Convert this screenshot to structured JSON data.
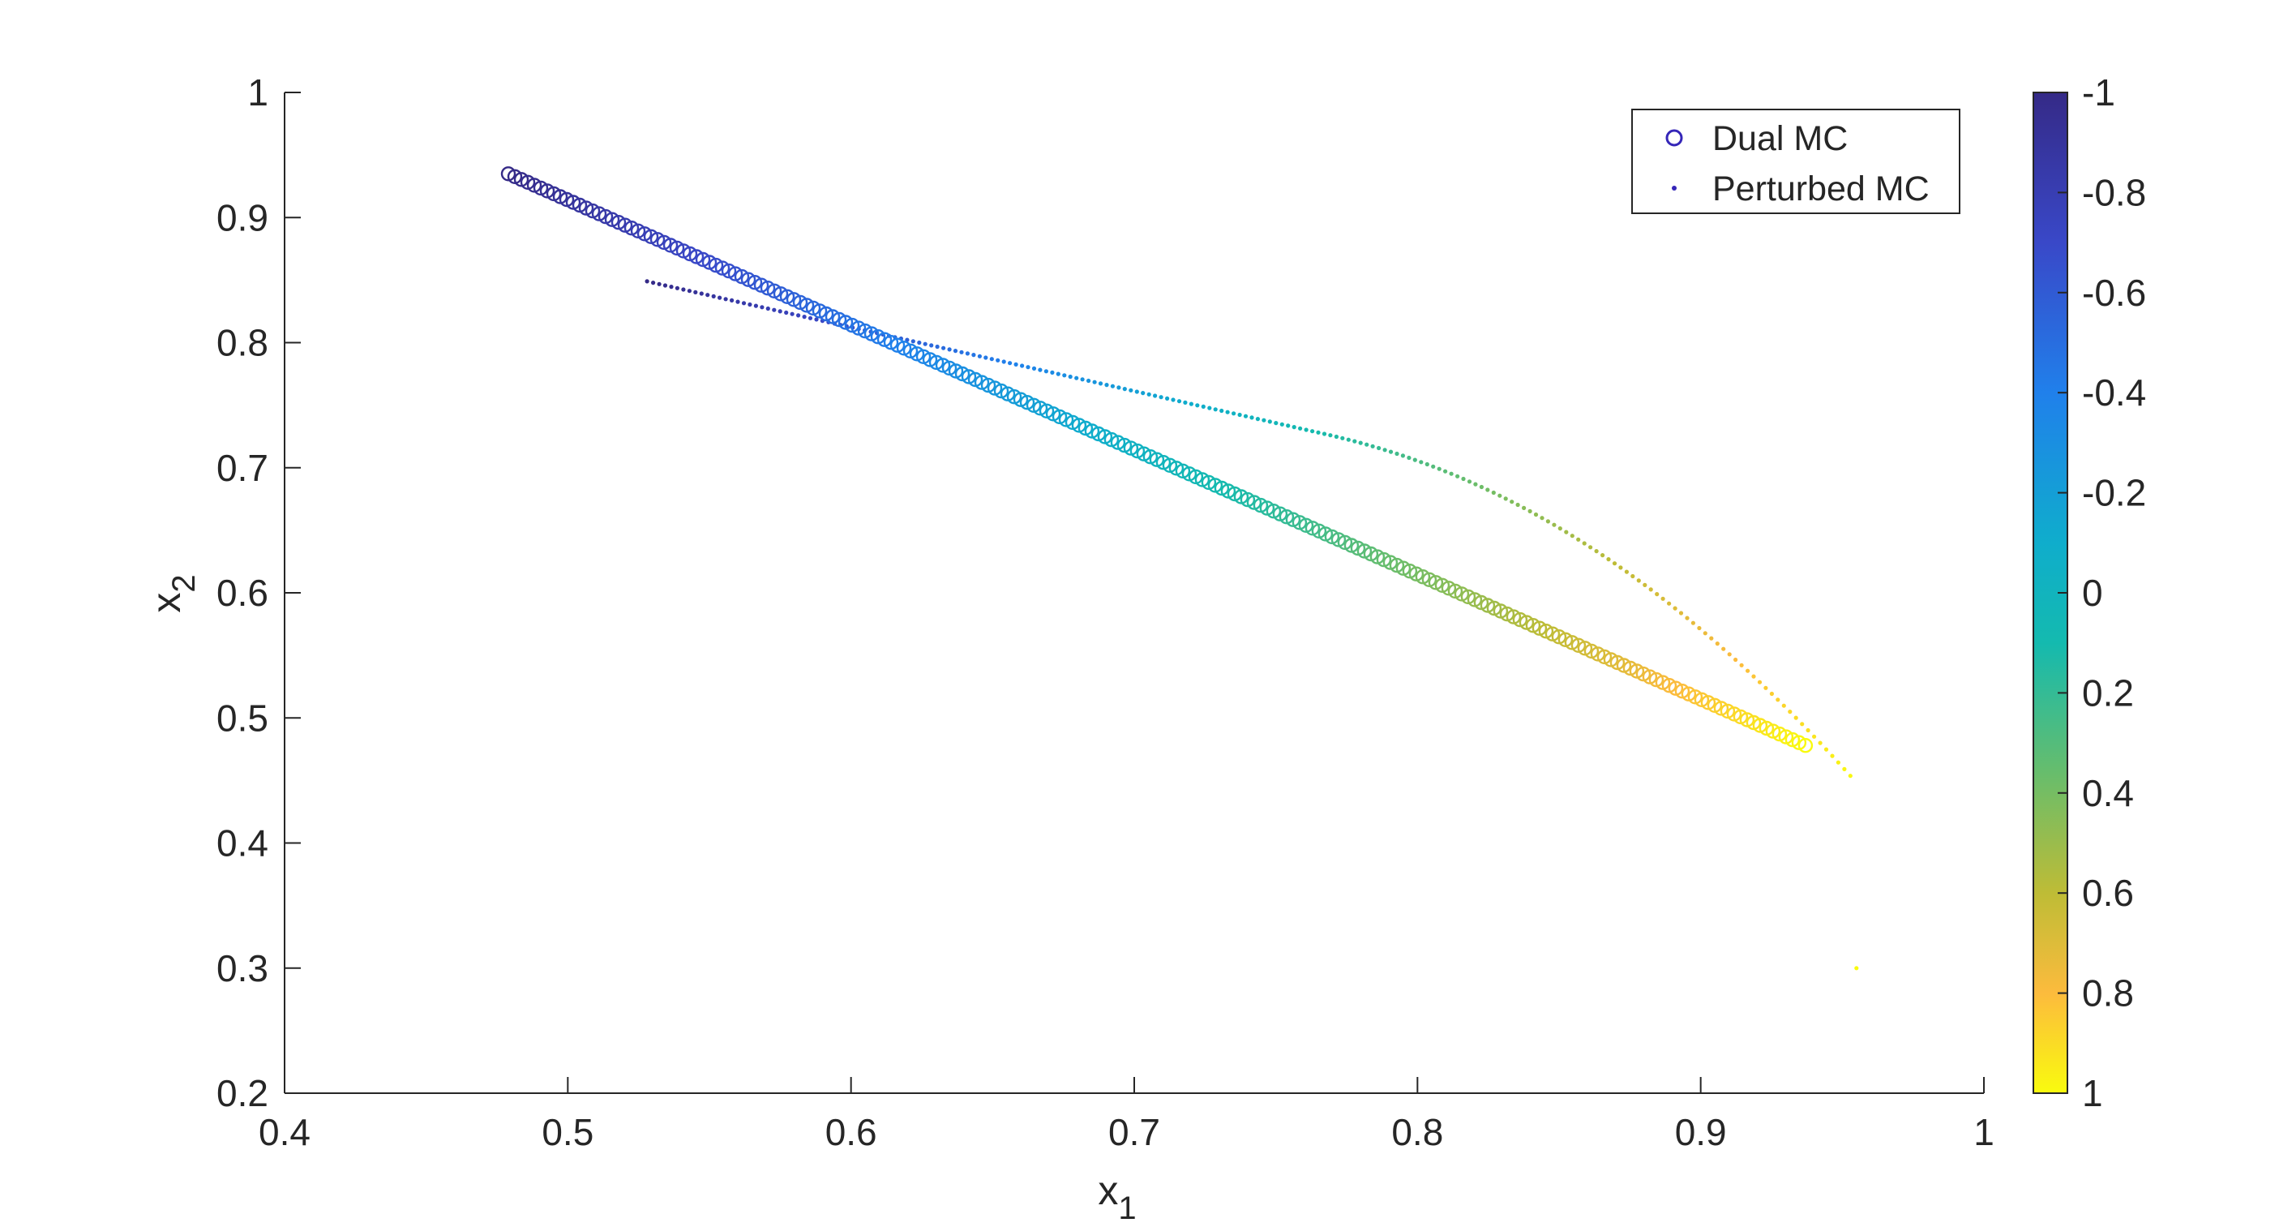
{
  "chart_data": {
    "type": "scatter",
    "title": "",
    "xlabel": "x",
    "xlabel_sub": "1",
    "ylabel": "x",
    "ylabel_sub": "2",
    "xlim": [
      0.4,
      1.0
    ],
    "ylim": [
      0.2,
      1.0
    ],
    "x_ticks": [
      "0.4",
      "0.5",
      "0.6",
      "0.7",
      "0.8",
      "0.9",
      "1"
    ],
    "y_ticks": [
      "0.2",
      "0.3",
      "0.4",
      "0.5",
      "0.6",
      "0.7",
      "0.8",
      "0.9",
      "1"
    ],
    "legend_position": "top-right",
    "colorbar": {
      "range": [
        -1,
        1
      ],
      "reversed": true,
      "ticks": [
        "-1",
        "-0.8",
        "-0.6",
        "-0.4",
        "-0.2",
        "0",
        "0.2",
        "0.4",
        "0.6",
        "0.8",
        "1"
      ],
      "colormap": "parula"
    },
    "series": [
      {
        "name": "Dual MC",
        "marker": "circle",
        "points": 201,
        "x_range": [
          0.479,
          0.937
        ],
        "y_range": [
          0.935,
          0.478
        ],
        "color_param_range": [
          -1,
          1
        ]
      },
      {
        "name": "Perturbed MC",
        "marker": "dot",
        "points": 201,
        "x_range": [
          0.528,
          0.955
        ],
        "y_start": 0.849,
        "y_end": 0.3,
        "color_param_range": [
          -1,
          1
        ]
      }
    ]
  },
  "legend": {
    "dual_label": "Dual MC",
    "perturbed_label": "Perturbed MC"
  },
  "colors": {
    "dual_legend_marker": "#3526b8",
    "perturbed_legend_marker": "#3526b8",
    "axis": "#262626"
  }
}
